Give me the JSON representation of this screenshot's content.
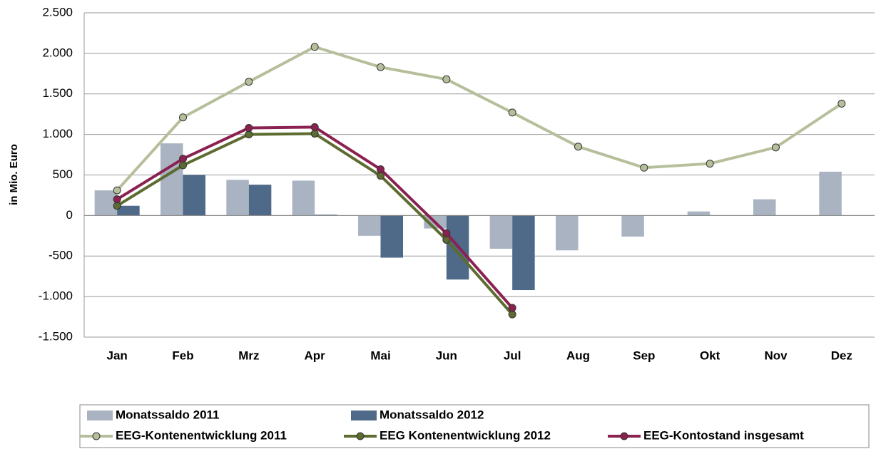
{
  "chart_data": {
    "type": "combo",
    "y_label": "in Mio. Euro",
    "categories": [
      "Jan",
      "Feb",
      "Mrz",
      "Apr",
      "Mai",
      "Jun",
      "Jul",
      "Aug",
      "Sep",
      "Okt",
      "Nov",
      "Dez"
    ],
    "series": [
      {
        "name": "Monatssaldo 2011",
        "type": "bar",
        "color": "#a9b3c1",
        "values": [
          310,
          890,
          440,
          430,
          -250,
          -160,
          -410,
          -430,
          -260,
          50,
          200,
          540
        ]
      },
      {
        "name": "Monatssaldo 2012",
        "type": "bar",
        "color": "#4f6988",
        "values": [
          120,
          500,
          380,
          10,
          -520,
          -790,
          -920,
          null,
          null,
          null,
          null,
          null
        ]
      },
      {
        "name": "EEG-Kontenentwicklung 2011",
        "type": "line",
        "color": "#b6bf9b",
        "values": [
          310,
          1210,
          1650,
          2080,
          1830,
          1680,
          1270,
          850,
          590,
          640,
          840,
          1380
        ]
      },
      {
        "name": "EEG Kontenentwicklung 2012",
        "type": "line",
        "color": "#5c6b2f",
        "values": [
          120,
          620,
          1000,
          1010,
          490,
          -300,
          -1220,
          null,
          null,
          null,
          null,
          null
        ]
      },
      {
        "name": "EEG-Kontostand insgesamt",
        "type": "line",
        "color": "#8b2150",
        "values": [
          200,
          700,
          1080,
          1090,
          570,
          -220,
          -1140,
          null,
          null,
          null,
          null,
          null
        ]
      }
    ],
    "ylim": [
      -1500,
      2500
    ],
    "yticks": [
      {
        "value": -1500,
        "label": "-1.500"
      },
      {
        "value": -1000,
        "label": "-1.000"
      },
      -500,
      0,
      500,
      {
        "value": 1000,
        "label": "1.000"
      },
      {
        "value": 1500,
        "label": "1.500"
      },
      {
        "value": 2000,
        "label": "2.000"
      },
      {
        "value": 2500,
        "label": "2.500"
      }
    ],
    "grid": true,
    "legend": "bottom"
  }
}
